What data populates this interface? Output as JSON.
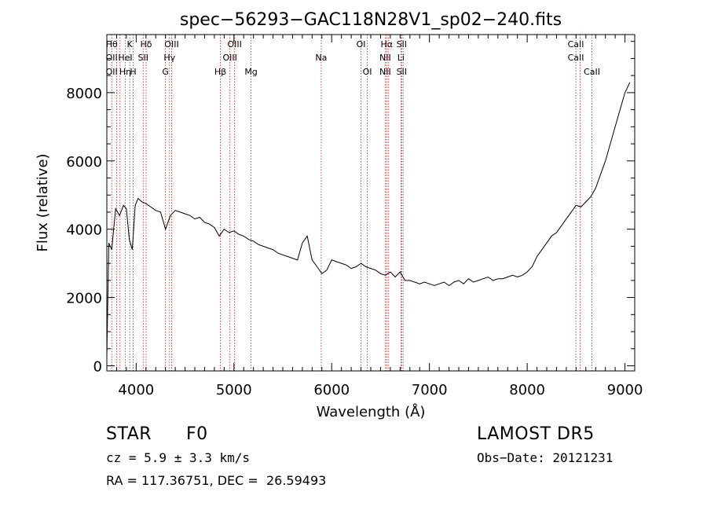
{
  "chart_data": {
    "type": "line",
    "title": "spec−56293−GAC118N28V1_sp02−240.fits",
    "xlabel": "Wavelength (Å)",
    "ylabel": "Flux (relative)",
    "xlim": [
      3700,
      9100
    ],
    "ylim": [
      -150,
      9700
    ],
    "xticks": [
      4000,
      5000,
      6000,
      7000,
      8000,
      9000
    ],
    "yticks": [
      0,
      2000,
      4000,
      6000,
      8000
    ],
    "xtick_labels": [
      "4000",
      "5000",
      "6000",
      "7000",
      "8000",
      "9000"
    ],
    "ytick_labels": [
      "0",
      "2000",
      "4000",
      "6000",
      "8000"
    ],
    "grid": false,
    "line_color": "#000000",
    "marker_color": "#b22222",
    "series": [
      {
        "x": [
          3700,
          3720,
          3750,
          3790,
          3830,
          3870,
          3900,
          3930,
          3960,
          3990,
          4020,
          4060,
          4100,
          4150,
          4200,
          4250,
          4300,
          4350,
          4400,
          4450,
          4500,
          4550,
          4600,
          4650,
          4700,
          4750,
          4800,
          4850,
          4900,
          4950,
          5000,
          5050,
          5100,
          5150,
          5200,
          5250,
          5300,
          5350,
          5400,
          5450,
          5500,
          5550,
          5600,
          5650,
          5700,
          5750,
          5800,
          5850,
          5900,
          5950,
          6000,
          6050,
          6100,
          6150,
          6200,
          6250,
          6300,
          6350,
          6400,
          6450,
          6500,
          6550,
          6600,
          6650,
          6700,
          6750,
          6800,
          6850,
          6900,
          6950,
          7000,
          7050,
          7100,
          7150,
          7200,
          7250,
          7300,
          7350,
          7400,
          7450,
          7500,
          7550,
          7600,
          7650,
          7700,
          7750,
          7800,
          7850,
          7900,
          7950,
          8000,
          8050,
          8100,
          8150,
          8200,
          8250,
          8300,
          8350,
          8400,
          8450,
          8500,
          8550,
          8600,
          8650,
          8700,
          8750,
          8800,
          8850,
          8900,
          8950,
          9000,
          9050
        ],
        "y": [
          300,
          3600,
          3400,
          4600,
          4400,
          4700,
          4600,
          3700,
          3400,
          4700,
          4900,
          4800,
          4750,
          4650,
          4550,
          4500,
          4000,
          4400,
          4550,
          4500,
          4450,
          4400,
          4300,
          4350,
          4200,
          4150,
          4050,
          3800,
          4000,
          3900,
          3950,
          3850,
          3800,
          3700,
          3650,
          3550,
          3500,
          3450,
          3400,
          3300,
          3250,
          3200,
          3150,
          3100,
          3600,
          3800,
          3100,
          2900,
          2700,
          2800,
          3100,
          3050,
          3000,
          2950,
          2850,
          2900,
          3000,
          2900,
          2850,
          2800,
          2700,
          2650,
          2750,
          2600,
          2750,
          2500,
          2500,
          2450,
          2400,
          2450,
          2400,
          2350,
          2400,
          2450,
          2350,
          2450,
          2500,
          2400,
          2550,
          2450,
          2500,
          2550,
          2600,
          2500,
          2550,
          2550,
          2600,
          2650,
          2600,
          2650,
          2750,
          2900,
          3200,
          3400,
          3600,
          3800,
          3900,
          4100,
          4300,
          4500,
          4700,
          4650,
          4800,
          4950,
          5200,
          5600,
          6000,
          6500,
          7000,
          7500,
          8000,
          8300
        ]
      }
    ],
    "line_markers": [
      {
        "w": 3750,
        "labels": [
          "Hθ",
          "OII",
          "OII"
        ]
      },
      {
        "w": 3800,
        "labels": [
          "",
          "",
          ""
        ]
      },
      {
        "w": 3835,
        "labels": [
          "",
          "",
          ""
        ]
      },
      {
        "w": 3889,
        "labels": [
          "",
          "HeI",
          "Hη"
        ]
      },
      {
        "w": 3934,
        "labels": [
          "K",
          "",
          ""
        ]
      },
      {
        "w": 3969,
        "labels": [
          "",
          "",
          "H"
        ]
      },
      {
        "w": 4072,
        "labels": [
          "",
          "SII",
          ""
        ]
      },
      {
        "w": 4102,
        "labels": [
          "Hδ",
          "",
          ""
        ]
      },
      {
        "w": 4300,
        "labels": [
          "",
          "",
          "G"
        ]
      },
      {
        "w": 4341,
        "labels": [
          "",
          "Hγ",
          ""
        ]
      },
      {
        "w": 4363,
        "labels": [
          "OIII",
          "",
          ""
        ]
      },
      {
        "w": 4861,
        "labels": [
          "",
          "",
          "Hβ"
        ]
      },
      {
        "w": 4959,
        "labels": [
          "",
          "OIII",
          ""
        ]
      },
      {
        "w": 5007,
        "labels": [
          "OIII",
          "",
          ""
        ]
      },
      {
        "w": 5175,
        "labels": [
          "",
          "",
          "Mg"
        ]
      },
      {
        "w": 5893,
        "labels": [
          "",
          "Na",
          ""
        ]
      },
      {
        "w": 6300,
        "labels": [
          "OI",
          "",
          ""
        ]
      },
      {
        "w": 6364,
        "labels": [
          "",
          "",
          "OI"
        ]
      },
      {
        "w": 6548,
        "labels": [
          "",
          "NII",
          "NII"
        ]
      },
      {
        "w": 6563,
        "labels": [
          "Hα",
          "",
          ""
        ]
      },
      {
        "w": 6583,
        "labels": [
          "",
          "",
          ""
        ]
      },
      {
        "w": 6708,
        "labels": [
          "",
          "Li",
          ""
        ]
      },
      {
        "w": 6716,
        "labels": [
          "SII",
          "",
          "SII"
        ]
      },
      {
        "w": 6731,
        "labels": [
          "",
          "",
          ""
        ]
      },
      {
        "w": 8498,
        "labels": [
          "CaII",
          "CaII",
          ""
        ]
      },
      {
        "w": 8542,
        "labels": [
          "",
          "",
          ""
        ]
      },
      {
        "w": 8662,
        "labels": [
          "",
          "",
          "CaII"
        ]
      }
    ]
  },
  "footer": {
    "object_class": "STAR",
    "subclass": "F0",
    "survey": "LAMOST DR5",
    "redshift": "cz = 5.9 ± 3.3 km/s",
    "obs_date": "Obs−Date: 20121231",
    "coords": "RA = 117.36751, DEC =  26.59493"
  }
}
